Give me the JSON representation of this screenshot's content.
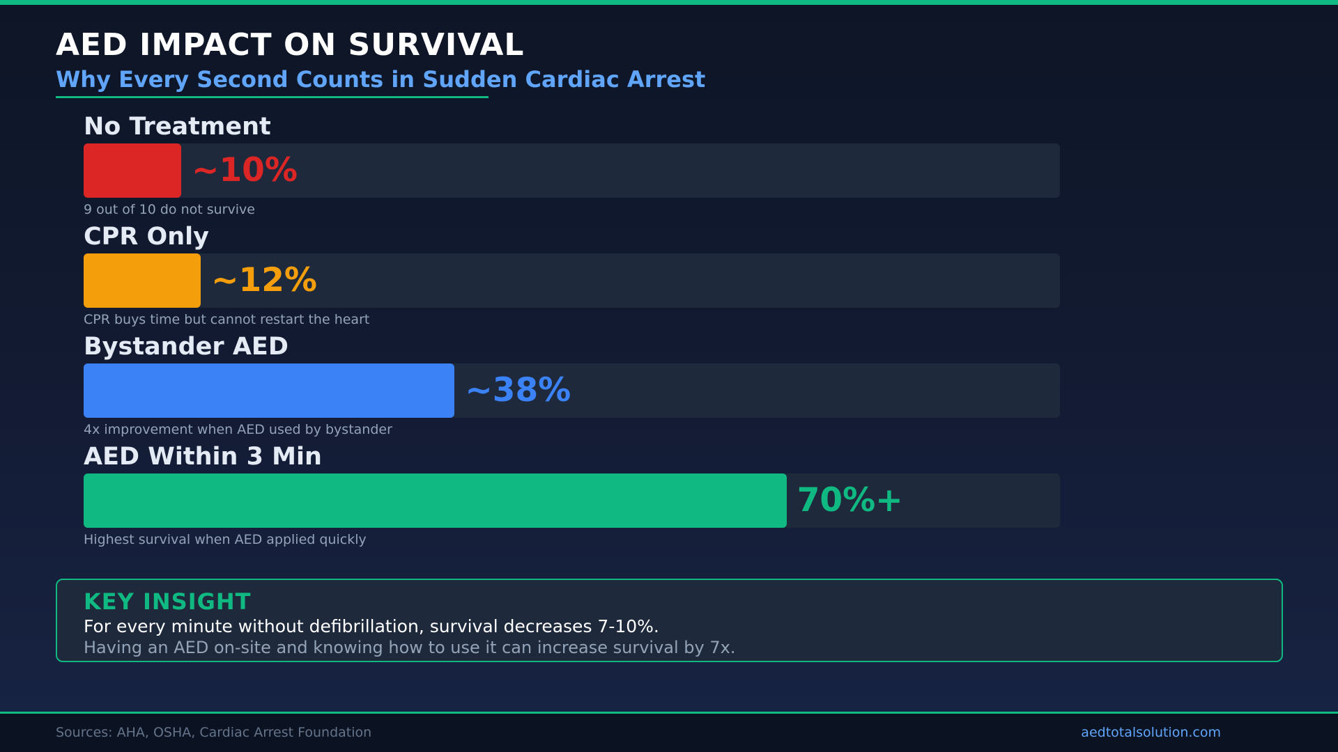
{
  "header": {
    "title": "AED IMPACT ON SURVIVAL",
    "subtitle": "Why Every Second Counts in Sudden Cardiac Arrest"
  },
  "chart_data": {
    "type": "bar",
    "orientation": "horizontal",
    "xlim": [
      0,
      100
    ],
    "categories": [
      "No Treatment",
      "CPR Only",
      "Bystander AED",
      "AED Within 3 Min"
    ],
    "values": [
      10,
      12,
      38,
      72
    ],
    "value_labels": [
      "~10%",
      "~12%",
      "~38%",
      "70%+"
    ],
    "captions": [
      "9 out of 10 do not survive",
      "CPR buys time but cannot restart the heart",
      "4x improvement when AED used by bystander",
      "Highest survival when AED applied quickly"
    ],
    "colors": [
      "#dc2626",
      "#f59e0b",
      "#3b82f6",
      "#10b981"
    ],
    "track_color": "#1e293b"
  },
  "insight": {
    "heading": "KEY INSIGHT",
    "line1": "For every minute without defibrillation, survival decreases 7-10%.",
    "line2": "Having an AED on-site and knowing how to use it can increase survival by 7x."
  },
  "footer": {
    "sources": "Sources: AHA, OSHA, Cardiac Arrest Foundation",
    "website": "aedtotalsolution.com"
  },
  "colors": {
    "accent": "#10b981",
    "subtitle": "#60a5fa"
  }
}
